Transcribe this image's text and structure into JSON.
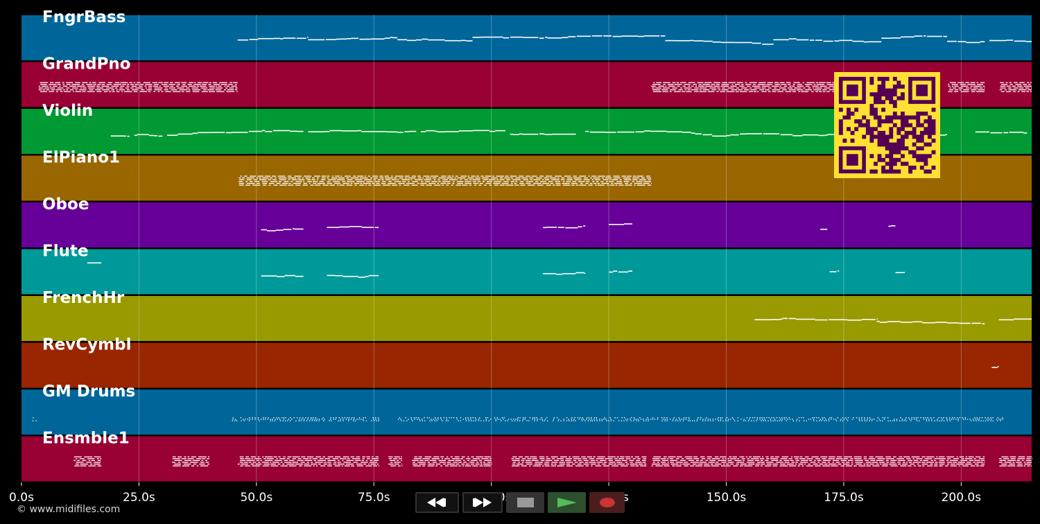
{
  "player": {
    "copyright": "© www.midifiles.com",
    "time_axis": {
      "unit": "s",
      "min": 0,
      "max": 215,
      "ticks": [
        {
          "value": 0,
          "label": "0.0s"
        },
        {
          "value": 25,
          "label": "25.0s"
        },
        {
          "value": 50,
          "label": "50.0s"
        },
        {
          "value": 75,
          "label": "75.0s"
        },
        {
          "value": 100,
          "label": "100.0s"
        },
        {
          "value": 125,
          "label": "125.0s"
        },
        {
          "value": 150,
          "label": "150.0s"
        },
        {
          "value": 175,
          "label": "175.0s"
        },
        {
          "value": 200,
          "label": "200.0s"
        }
      ]
    },
    "tracks": [
      {
        "name": "FngrBass",
        "color": "#006699",
        "style": "line",
        "segments": [
          [
            46,
            61
          ],
          [
            61,
            80
          ],
          [
            80,
            96
          ],
          [
            96,
            115
          ],
          [
            115,
            137
          ],
          [
            137,
            160
          ],
          [
            160,
            183
          ],
          [
            183,
            197
          ],
          [
            197,
            201
          ],
          [
            201,
            205
          ],
          [
            206,
            215
          ]
        ]
      },
      {
        "name": "GrandPno",
        "color": "#990033",
        "style": "dense",
        "segments": [
          [
            3.5,
            46
          ],
          [
            134,
            192
          ],
          [
            197,
            205
          ],
          [
            208,
            215
          ]
        ]
      },
      {
        "name": "Violin",
        "color": "#009933",
        "style": "line",
        "segments": [
          [
            19,
            23
          ],
          [
            24,
            30
          ],
          [
            31,
            60
          ],
          [
            61,
            84
          ],
          [
            85,
            103
          ],
          [
            104,
            118
          ],
          [
            120,
            147
          ],
          [
            147,
            175
          ],
          [
            193,
            197
          ],
          [
            203,
            214
          ]
        ]
      },
      {
        "name": "ElPiano1",
        "color": "#996600",
        "style": "dense",
        "segments": [
          [
            46,
            134
          ]
        ]
      },
      {
        "name": "Oboe",
        "color": "#660099",
        "style": "line",
        "segments": [
          [
            51,
            60
          ],
          [
            65,
            76
          ],
          [
            111,
            120
          ],
          [
            125,
            130
          ],
          [
            170,
            171.5
          ],
          [
            184.5,
            186
          ]
        ]
      },
      {
        "name": "Flute",
        "color": "#009999",
        "style": "line",
        "segments": [
          [
            51,
            60
          ],
          [
            65,
            76
          ],
          [
            111,
            120
          ],
          [
            125,
            130
          ],
          [
            172,
            174
          ],
          [
            186,
            188
          ]
        ],
        "extra_marks": [
          [
            14,
            17
          ]
        ]
      },
      {
        "name": "FrenchHr",
        "color": "#999900",
        "style": "line",
        "segments": [
          [
            156,
            182
          ],
          [
            182,
            197
          ],
          [
            197,
            205
          ],
          [
            208,
            215
          ]
        ]
      },
      {
        "name": "RevCymbl",
        "color": "#992600",
        "style": "line",
        "segments": [
          [
            206.5,
            208
          ]
        ]
      },
      {
        "name": "GM Drums",
        "color": "#006699",
        "style": "dots",
        "segments": [
          [
            2,
            3
          ],
          [
            44.5,
            76
          ],
          [
            80,
            208
          ],
          [
            208,
            209
          ]
        ]
      },
      {
        "name": "Ensmble1",
        "color": "#990033",
        "style": "dense",
        "segments": [
          [
            11,
            17
          ],
          [
            32,
            40
          ],
          [
            46,
            76
          ],
          [
            78,
            81
          ],
          [
            83,
            100
          ],
          [
            104,
            133
          ],
          [
            134,
            150
          ],
          [
            150,
            177
          ],
          [
            177,
            195
          ],
          [
            195,
            205
          ],
          [
            208,
            215
          ]
        ]
      }
    ],
    "transport": {
      "rewind_icon": "rewind-icon",
      "fast_forward_icon": "fast-forward-icon",
      "stop_icon": "stop-icon",
      "play_icon": "play-icon",
      "record_icon": "record-icon",
      "play_color": "#55bb55",
      "record_color": "#cc3333"
    },
    "qr_code": {
      "foreground": "#550055",
      "background": "#ffe033"
    }
  }
}
